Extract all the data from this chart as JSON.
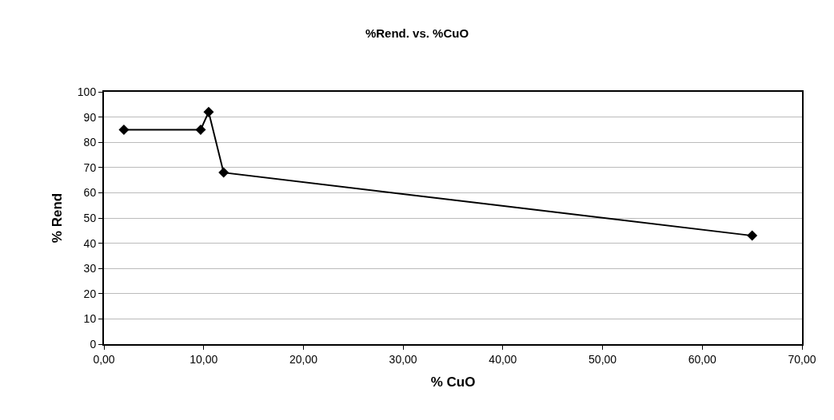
{
  "chart_data": {
    "type": "line",
    "title": "%Rend. vs. %CuO",
    "xlabel": "% CuO",
    "ylabel": "% Rend",
    "x": [
      2,
      9.7,
      10.5,
      12,
      65
    ],
    "series": [
      {
        "color": "#000000",
        "values": [
          85,
          85,
          92,
          68,
          43
        ]
      }
    ],
    "xlim": [
      0,
      70
    ],
    "xticks": [
      {
        "value": 0,
        "label": "0,00"
      },
      {
        "value": 10,
        "label": "10,00"
      },
      {
        "value": 20,
        "label": "20,00"
      },
      {
        "value": 30,
        "label": "30,00"
      },
      {
        "value": 40,
        "label": "40,00"
      },
      {
        "value": 50,
        "label": "50,00"
      },
      {
        "value": 60,
        "label": "60,00"
      },
      {
        "value": 70,
        "label": "70,00"
      }
    ],
    "ylim": [
      0,
      100
    ],
    "yticks": [
      0,
      10,
      20,
      30,
      40,
      50,
      60,
      70,
      80,
      90,
      100
    ],
    "grid": "y",
    "marker": "diamond",
    "line_style": "solid"
  }
}
